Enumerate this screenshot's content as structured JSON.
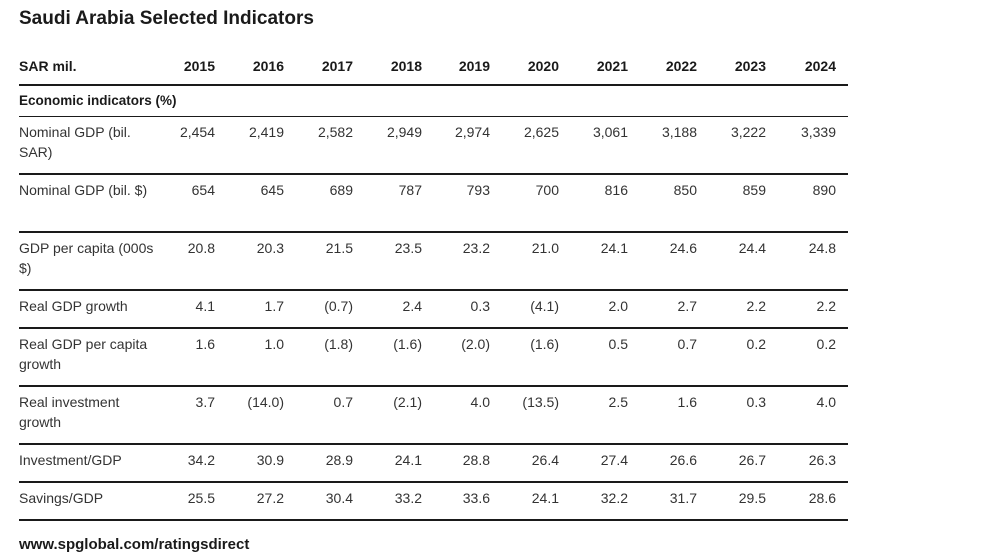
{
  "title": "Saudi Arabia Selected Indicators",
  "table": {
    "unit_label": "SAR mil.",
    "years": [
      "2015",
      "2016",
      "2017",
      "2018",
      "2019",
      "2020",
      "2021",
      "2022",
      "2023",
      "2024"
    ],
    "section_label": "Economic indicators (%)",
    "rows": [
      {
        "label": "Nominal GDP (bil. SAR)",
        "values": [
          "2,454",
          "2,419",
          "2,582",
          "2,949",
          "2,974",
          "2,625",
          "3,061",
          "3,188",
          "3,222",
          "3,339"
        ]
      },
      {
        "label": "Nominal GDP (bil. $)",
        "values": [
          "654",
          "645",
          "689",
          "787",
          "793",
          "700",
          "816",
          "850",
          "859",
          "890"
        ]
      },
      {
        "label": "GDP per capita (000s $)",
        "values": [
          "20.8",
          "20.3",
          "21.5",
          "23.5",
          "23.2",
          "21.0",
          "24.1",
          "24.6",
          "24.4",
          "24.8"
        ]
      },
      {
        "label": "Real GDP growth",
        "values": [
          "4.1",
          "1.7",
          "(0.7)",
          "2.4",
          "0.3",
          "(4.1)",
          "2.0",
          "2.7",
          "2.2",
          "2.2"
        ]
      },
      {
        "label": "Real GDP per capita growth",
        "values": [
          "1.6",
          "1.0",
          "(1.8)",
          "(1.6)",
          "(2.0)",
          "(1.6)",
          "0.5",
          "0.7",
          "0.2",
          "0.2"
        ]
      },
      {
        "label": "Real investment growth",
        "values": [
          "3.7",
          "(14.0)",
          "0.7",
          "(2.1)",
          "4.0",
          "(13.5)",
          "2.5",
          "1.6",
          "0.3",
          "4.0"
        ]
      },
      {
        "label": "Investment/GDP",
        "values": [
          "34.2",
          "30.9",
          "28.9",
          "24.1",
          "28.8",
          "26.4",
          "27.4",
          "26.6",
          "26.7",
          "26.3"
        ]
      },
      {
        "label": "Savings/GDP",
        "values": [
          "25.5",
          "27.2",
          "30.4",
          "33.2",
          "33.6",
          "24.1",
          "32.2",
          "31.7",
          "29.5",
          "28.6"
        ]
      }
    ]
  },
  "footer": "www.spglobal.com/ratingsdirect"
}
